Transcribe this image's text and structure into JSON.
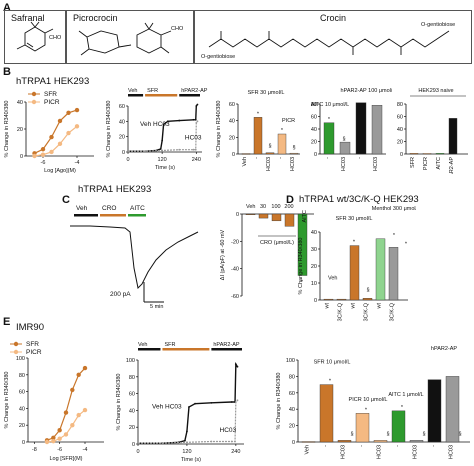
{
  "panels": {
    "A": {
      "letter": "A",
      "structures": [
        {
          "name": "Safranal",
          "annotation": "CHO"
        },
        {
          "name": "Picrocrocin",
          "annotation": "CHO"
        },
        {
          "name": "Crocin",
          "annotation_top": "O-gentiobiose",
          "annotation_bottom": "O-gentiobiose"
        }
      ]
    },
    "B": {
      "letter": "B",
      "cell_line": "hTRPA1 HEK293"
    },
    "C": {
      "letter": "C",
      "cell_line": "hTRPA1 HEK293"
    },
    "D": {
      "letter": "D",
      "cell_line": "hTRPA1 wt/3C/K-Q HEK293"
    },
    "E": {
      "letter": "E",
      "cell_line": "IMR90"
    }
  },
  "text": {
    "pct_ylabel": "% Change in R340/380",
    "sfr": "SFR",
    "picr": "PICR",
    "hc03": "HC03",
    "veh": "Veh",
    "aitc": "AITC",
    "cro": "CRO",
    "hpar2": "hPAR2-AP",
    "sfr_conc_30": "SFR 30 μmol/L",
    "sfr_conc_10": "SFR 10 μmol/L",
    "picr_conc": "PICR 10 μmol/L",
    "aitc_conc_10": "AITC 10 μmol/L",
    "aitc_conc_1": "AITC 1 μmol/L",
    "hpar2_conc": "hPAR2-AP 100 μmol/L",
    "menthol": "Menthol 300 μmol/L",
    "hek_naive": "HEK293 naive",
    "time": "Time (s)",
    "log_ago": "Log [Ago](M)",
    "log_sfr": "Log [SFR](M)",
    "cro_units": "CRO (μmol/L)",
    "ia_ylabel": "ΔI (pA/pF) at -60 mV",
    "scale_pa": "200 pA",
    "scale_min": "5 min",
    "veh_hc03": "Veh HC03",
    "dash": "-",
    "section": "§",
    "star": "*",
    "wt": "wt",
    "k3c": "3C/K-Q",
    "sfr_pair": "SFR",
    "aitc_pair": "AITC",
    "c_concs": [
      "30",
      "100",
      "200"
    ],
    "hpar2_ap": "hPAR2-AP"
  },
  "chart_data": [
    {
      "id": "B1",
      "type": "line",
      "xlabel": "Log [Ago](M)",
      "ylabel": "% Change in R340/380",
      "xlim": [
        -7,
        -3
      ],
      "ylim": [
        0,
        40
      ],
      "xticks": [
        -6,
        -4
      ],
      "yticks": [
        0,
        20,
        40
      ],
      "series": [
        {
          "name": "SFR",
          "color": "#c9762a",
          "x": [
            -6.5,
            -6,
            -5.5,
            -5,
            -4.5,
            -4
          ],
          "y": [
            2,
            5,
            14,
            26,
            32,
            34
          ]
        },
        {
          "name": "PICR",
          "color": "#f4b982",
          "x": [
            -6.5,
            -6,
            -5.5,
            -5,
            -4.5,
            -4
          ],
          "y": [
            0,
            1,
            3,
            9,
            17,
            22
          ]
        }
      ]
    },
    {
      "id": "B2",
      "type": "line",
      "xlabel": "Time (s)",
      "ylabel": "% Change in R340/380",
      "xlim": [
        0,
        260
      ],
      "ylim": [
        0,
        60
      ],
      "xticks": [
        0,
        120,
        240
      ],
      "yticks": [
        0,
        20,
        40,
        60
      ],
      "bars": [
        "Veh",
        "SFR",
        "hPAR2-AP"
      ],
      "series": [
        {
          "name": "Veh HC03",
          "color": "#111111"
        },
        {
          "name": "HC03",
          "color": "#9a9a9a"
        }
      ]
    },
    {
      "id": "B3",
      "type": "bar",
      "ylim": [
        0,
        60
      ],
      "yticks": [
        0,
        20,
        40,
        60
      ],
      "categories": [
        "Veh",
        "-",
        "HC03",
        "-",
        "HC03"
      ],
      "values": [
        0.5,
        44,
        1.5,
        24,
        1
      ],
      "colors": [
        "#c9762a",
        "#c9762a",
        "#c9762a",
        "#f4b982",
        "#f4b982"
      ],
      "labels": [
        "SFR 30 μmol/L",
        "PICR"
      ]
    },
    {
      "id": "B4",
      "type": "bar",
      "ylim": [
        0,
        80
      ],
      "yticks": [
        0,
        20,
        40,
        60,
        80
      ],
      "categories": [
        "-",
        "HC03",
        "-",
        "HC03"
      ],
      "values": [
        50,
        19,
        82,
        78
      ],
      "colors": [
        "#2e9a2e",
        "#9a9a9a",
        "#111111",
        "#9a9a9a"
      ],
      "labels": [
        "AITC 10 μmol/L",
        "hPAR2-AP 100 μmol/L"
      ]
    },
    {
      "id": "B5",
      "type": "bar",
      "ylim": [
        0,
        80
      ],
      "yticks": [
        0,
        20,
        40,
        60,
        80
      ],
      "categories": [
        "SFR",
        "PICR",
        "AITC",
        "hPAR2-AP"
      ],
      "values": [
        1,
        1,
        1,
        57
      ],
      "colors": [
        "#c9762a",
        "#f4b982",
        "#2e9a2e",
        "#111111"
      ],
      "labels": [
        "HEK293 naive"
      ]
    },
    {
      "id": "C2",
      "type": "bar",
      "ylim": [
        -60,
        0
      ],
      "ylabel": "ΔI (pA/pF) at -60 mV",
      "yticks": [
        0,
        -20,
        -40,
        -60
      ],
      "categories": [
        "Veh",
        "30",
        "100",
        "200",
        "AITC"
      ],
      "values": [
        -0.5,
        -3,
        -5,
        -9,
        -45
      ],
      "colors": [
        "#c9762a",
        "#c9762a",
        "#c9762a",
        "#c9762a",
        "#2e9a2e"
      ]
    },
    {
      "id": "D",
      "type": "bar",
      "ylim": [
        0,
        40
      ],
      "yticks": [
        0,
        10,
        20,
        30,
        40
      ],
      "categories": [
        "wt",
        "3C/K-Q",
        "wt",
        "3C/K-Q",
        "wt",
        "3C/K-Q"
      ],
      "groups": [
        "Veh",
        "SFR 30 μmol/L",
        "Menthol 300 μmol/L"
      ],
      "values": [
        0.5,
        0.5,
        32,
        1,
        36,
        31
      ],
      "colors": [
        "#c9762a",
        "#c9762a",
        "#c9762a",
        "#c9762a",
        "#8fd48f",
        "#9a9a9a"
      ]
    },
    {
      "id": "E1",
      "type": "line",
      "xlabel": "Log [SFR](M)",
      "ylabel": "% Change in R340/380",
      "xlim": [
        -8.5,
        -2.5
      ],
      "ylim": [
        0,
        100
      ],
      "xticks": [
        -8,
        -6,
        -4
      ],
      "yticks": [
        0,
        20,
        40,
        60,
        80,
        100
      ],
      "series": [
        {
          "name": "SFR",
          "color": "#c9762a",
          "x": [
            -7,
            -6.5,
            -6,
            -5.5,
            -5,
            -4.5,
            -4
          ],
          "y": [
            2,
            5,
            14,
            35,
            62,
            80,
            88
          ]
        },
        {
          "name": "PICR",
          "color": "#f4b982",
          "x": [
            -7,
            -6.5,
            -6,
            -5.5,
            -5,
            -4.5,
            -4
          ],
          "y": [
            0,
            1,
            4,
            9,
            20,
            32,
            38
          ]
        }
      ]
    },
    {
      "id": "E2",
      "type": "line",
      "xlabel": "Time (s)",
      "ylabel": "% Change in R340/380",
      "xlim": [
        0,
        260
      ],
      "ylim": [
        0,
        100
      ],
      "xticks": [
        0,
        120,
        240
      ],
      "yticks": [
        0,
        20,
        40,
        60,
        80,
        100
      ],
      "bars": [
        "Veh",
        "SFR",
        "hPAR2-AP"
      ],
      "series": [
        {
          "name": "Veh HC03",
          "color": "#111111"
        },
        {
          "name": "HC03",
          "color": "#9a9a9a"
        }
      ]
    },
    {
      "id": "E3",
      "type": "bar",
      "ylim": [
        0,
        100
      ],
      "yticks": [
        0,
        20,
        40,
        60,
        80,
        100
      ],
      "categories": [
        "Veh",
        "-",
        "HC03",
        "-",
        "HC03",
        "-",
        "HC03",
        "-",
        "HC03"
      ],
      "values": [
        0.5,
        70,
        2,
        35,
        2,
        38,
        2,
        76,
        80
      ],
      "colors": [
        "#c9762a",
        "#c9762a",
        "#c9762a",
        "#f4b982",
        "#f4b982",
        "#2e9a2e",
        "#9a9a9a",
        "#111111",
        "#9a9a9a"
      ],
      "labels": [
        "SFR 10 μmol/L",
        "PICR 10 μmol/L",
        "AITC 1 μmol/L",
        "hPAR2-AP"
      ]
    }
  ]
}
